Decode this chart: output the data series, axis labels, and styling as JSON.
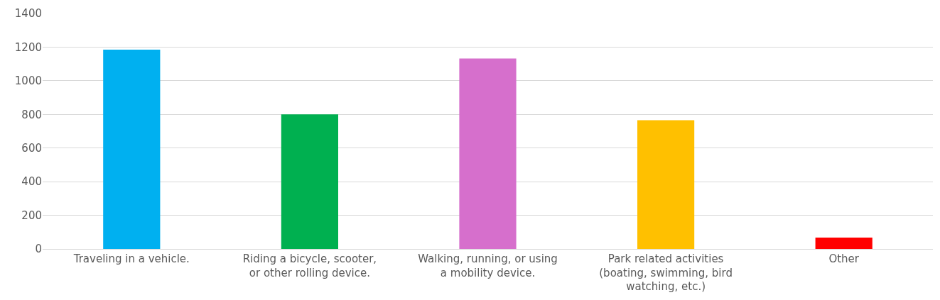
{
  "chart_data": {
    "type": "bar",
    "categories": [
      "Traveling in a vehicle.",
      "Riding a bicycle, scooter,\nor other rolling device.",
      "Walking, running, or using\na mobility device.",
      "Park related activities\n(boating, swimming, bird\nwatching, etc.)",
      "Other"
    ],
    "values": [
      1185,
      800,
      1132,
      765,
      67
    ],
    "colors": [
      "#00b0f0",
      "#00b050",
      "#d66fcc",
      "#ffc000",
      "#ff0000"
    ],
    "ylim": [
      0,
      1400
    ],
    "yticks": [
      0,
      200,
      400,
      600,
      800,
      1000,
      1200,
      1400
    ],
    "grid": "y"
  }
}
